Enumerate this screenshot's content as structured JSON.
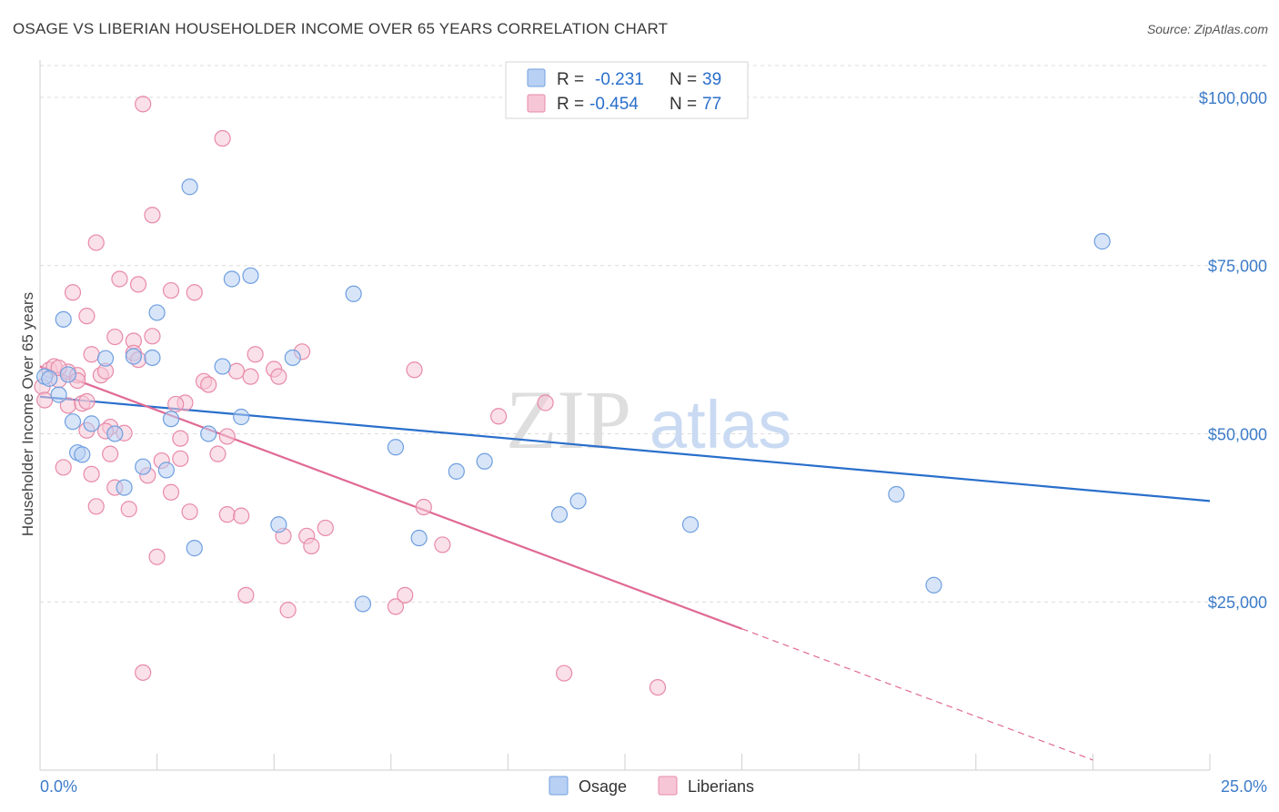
{
  "header": {
    "title": "OSAGE VS LIBERIAN HOUSEHOLDER INCOME OVER 65 YEARS CORRELATION CHART",
    "source": "Source: ZipAtlas.com"
  },
  "watermark": {
    "zip": "ZIP",
    "atlas": "atlas"
  },
  "colors": {
    "osage": "#6f9fe0",
    "osage_fill": "#b8d0f3",
    "osage_line": "#2a6fcc",
    "liberians": "#e88aa8",
    "liberians_fill": "#f6c6d6",
    "liberians_line": "#e06a95",
    "tick_text": "#3d7cc9",
    "grid": "#dcdcdc"
  },
  "legend_box": {
    "rows": [
      {
        "r_label": "R =",
        "r_value": "-0.231",
        "n_label": "N =",
        "n_value": "39"
      },
      {
        "r_label": "R =",
        "r_value": "-0.454",
        "n_label": "N =",
        "n_value": "77"
      }
    ]
  },
  "bottom_legend": [
    "Osage",
    "Liberians"
  ],
  "chart_data": {
    "type": "scatter",
    "title": "OSAGE VS LIBERIAN HOUSEHOLDER INCOME OVER 65 YEARS CORRELATION CHART",
    "xlabel": "",
    "ylabel": "Householder Income Over 65 years",
    "xlim": [
      0,
      25
    ],
    "ylim": [
      0,
      105000
    ],
    "x_tick_labels": [
      "0.0%",
      "25.0%"
    ],
    "y_ticks": [
      25000,
      50000,
      75000,
      100000
    ],
    "y_tick_labels": [
      "$25,000",
      "$50,000",
      "$75,000",
      "$100,000"
    ],
    "grid": true,
    "legend_placement": "top-center",
    "series": [
      {
        "name": "Osage",
        "R": -0.231,
        "N": 39,
        "trend": {
          "x": [
            0,
            25
          ],
          "y": [
            55500,
            40000
          ]
        },
        "points": [
          [
            0.1,
            58500
          ],
          [
            0.2,
            58200
          ],
          [
            0.4,
            55800
          ],
          [
            0.5,
            67000
          ],
          [
            0.7,
            51800
          ],
          [
            0.8,
            47200
          ],
          [
            0.9,
            46900
          ],
          [
            1.1,
            51500
          ],
          [
            1.4,
            61200
          ],
          [
            1.6,
            50000
          ],
          [
            1.8,
            42000
          ],
          [
            2.0,
            61500
          ],
          [
            2.2,
            45100
          ],
          [
            2.4,
            61300
          ],
          [
            2.5,
            68000
          ],
          [
            2.7,
            44600
          ],
          [
            2.8,
            52200
          ],
          [
            3.2,
            86700
          ],
          [
            3.3,
            33000
          ],
          [
            3.6,
            50000
          ],
          [
            3.9,
            60000
          ],
          [
            4.1,
            73000
          ],
          [
            4.3,
            52500
          ],
          [
            4.5,
            73500
          ],
          [
            5.1,
            36500
          ],
          [
            5.4,
            61300
          ],
          [
            6.7,
            70800
          ],
          [
            6.9,
            24700
          ],
          [
            7.6,
            48000
          ],
          [
            8.1,
            34500
          ],
          [
            8.9,
            44400
          ],
          [
            9.5,
            45900
          ],
          [
            11.1,
            38000
          ],
          [
            11.5,
            40000
          ],
          [
            13.9,
            36500
          ],
          [
            18.3,
            41000
          ],
          [
            19.1,
            27500
          ],
          [
            22.7,
            78600
          ],
          [
            0.6,
            58800
          ]
        ]
      },
      {
        "name": "Liberians",
        "R": -0.454,
        "N": 77,
        "trend": {
          "x": [
            0,
            15
          ],
          "y": [
            60000,
            21000
          ]
        },
        "trend_dashed": {
          "x": [
            15,
            22.5
          ],
          "y": [
            21000,
            1500
          ]
        },
        "points": [
          [
            0.05,
            57000
          ],
          [
            0.1,
            55000
          ],
          [
            0.2,
            59500
          ],
          [
            0.3,
            60000
          ],
          [
            0.4,
            58000
          ],
          [
            0.5,
            45000
          ],
          [
            0.6,
            54200
          ],
          [
            0.6,
            59200
          ],
          [
            0.7,
            71000
          ],
          [
            0.8,
            58700
          ],
          [
            0.9,
            54500
          ],
          [
            1.0,
            54800
          ],
          [
            1.0,
            50500
          ],
          [
            1.0,
            67500
          ],
          [
            1.1,
            61800
          ],
          [
            1.1,
            44000
          ],
          [
            1.2,
            39200
          ],
          [
            1.2,
            78400
          ],
          [
            1.3,
            58700
          ],
          [
            1.4,
            59300
          ],
          [
            1.5,
            47000
          ],
          [
            1.5,
            51000
          ],
          [
            1.6,
            42000
          ],
          [
            1.6,
            64400
          ],
          [
            1.7,
            73000
          ],
          [
            1.8,
            50100
          ],
          [
            1.9,
            38800
          ],
          [
            2.0,
            63800
          ],
          [
            2.0,
            62000
          ],
          [
            2.1,
            61000
          ],
          [
            2.1,
            72200
          ],
          [
            2.2,
            14500
          ],
          [
            2.2,
            99000
          ],
          [
            2.3,
            43800
          ],
          [
            2.4,
            64500
          ],
          [
            2.4,
            82500
          ],
          [
            2.5,
            31700
          ],
          [
            2.6,
            46000
          ],
          [
            2.8,
            71300
          ],
          [
            2.8,
            41300
          ],
          [
            3.0,
            49300
          ],
          [
            3.0,
            46300
          ],
          [
            3.1,
            54600
          ],
          [
            3.2,
            38400
          ],
          [
            3.3,
            71000
          ],
          [
            3.5,
            57800
          ],
          [
            3.6,
            57300
          ],
          [
            3.8,
            47000
          ],
          [
            3.9,
            93900
          ],
          [
            4.0,
            38000
          ],
          [
            4.0,
            49600
          ],
          [
            4.2,
            59300
          ],
          [
            4.3,
            37800
          ],
          [
            4.4,
            26000
          ],
          [
            4.5,
            58500
          ],
          [
            4.6,
            61800
          ],
          [
            5.0,
            59600
          ],
          [
            5.1,
            58500
          ],
          [
            5.2,
            34800
          ],
          [
            5.3,
            23800
          ],
          [
            5.6,
            62200
          ],
          [
            5.7,
            34800
          ],
          [
            5.8,
            33300
          ],
          [
            6.1,
            36000
          ],
          [
            7.6,
            24300
          ],
          [
            7.8,
            26000
          ],
          [
            8.0,
            59500
          ],
          [
            8.2,
            39100
          ],
          [
            8.6,
            33500
          ],
          [
            9.8,
            52600
          ],
          [
            10.8,
            54600
          ],
          [
            11.2,
            14400
          ],
          [
            13.2,
            12300
          ],
          [
            0.4,
            59800
          ],
          [
            0.8,
            57900
          ],
          [
            1.4,
            50400
          ],
          [
            2.9,
            54400
          ]
        ]
      }
    ]
  }
}
